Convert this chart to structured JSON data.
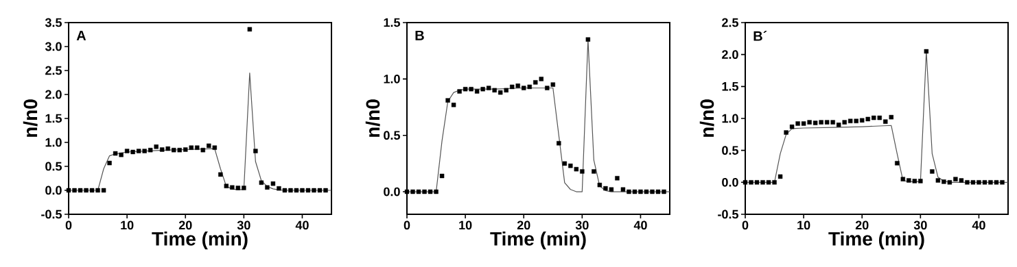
{
  "chart_data": [
    {
      "type": "scatter",
      "title": "A",
      "xlabel": "Time (min)",
      "ylabel": "n/n0",
      "xlim": [
        0,
        45
      ],
      "xticks": [
        0,
        10,
        20,
        30,
        40
      ],
      "ylim": [
        -0.5,
        3.5
      ],
      "yticks": [
        {
          "value": -0.5,
          "label": "-0.5"
        },
        {
          "value": 0,
          "label": "0.0"
        },
        {
          "value": 0.5,
          "label": "0.5"
        },
        {
          "value": 1,
          "label": "1.0"
        },
        {
          "value": 1.5,
          "label": "1.5"
        },
        {
          "value": 2,
          "label": "2.0"
        },
        {
          "value": 2.5,
          "label": "2.5"
        },
        {
          "value": 3,
          "label": "3.0"
        },
        {
          "value": 3.5,
          "label": "3.5"
        }
      ],
      "series": [
        {
          "marker": "square",
          "color": "#000000",
          "x": [
            0,
            1,
            2,
            3,
            4,
            5,
            6,
            7,
            8,
            9,
            10,
            11,
            12,
            13,
            14,
            15,
            16,
            17,
            18,
            19,
            20,
            21,
            22,
            23,
            24,
            25,
            26,
            27,
            28,
            29,
            30,
            31,
            32,
            33,
            34,
            35,
            36,
            37,
            38,
            39,
            40,
            41,
            42,
            43,
            44
          ],
          "values": [
            0,
            0,
            0,
            0,
            0,
            0,
            0,
            0.57,
            0.77,
            0.74,
            0.82,
            0.8,
            0.82,
            0.82,
            0.84,
            0.91,
            0.85,
            0.87,
            0.84,
            0.84,
            0.85,
            0.89,
            0.89,
            0.84,
            0.93,
            0.89,
            0.33,
            0.09,
            0.06,
            0.05,
            0.05,
            3.36,
            0.82,
            0.16,
            0.06,
            0.14,
            0.04,
            0,
            0,
            0,
            0,
            0,
            0,
            0,
            0
          ]
        },
        {
          "type": "line",
          "color": "#555555",
          "x": [
            0,
            5,
            6,
            7,
            8,
            10,
            15,
            20,
            25,
            26,
            27,
            28,
            29,
            30,
            31,
            32,
            33,
            34,
            35,
            36,
            37,
            45
          ],
          "values": [
            0,
            0,
            0.45,
            0.72,
            0.76,
            0.8,
            0.83,
            0.85,
            0.87,
            0.45,
            0.08,
            0.03,
            0.01,
            0.02,
            2.45,
            0.6,
            0.2,
            0.08,
            0.03,
            0.01,
            0,
            0
          ]
        }
      ]
    },
    {
      "type": "scatter",
      "title": "B",
      "xlabel": "Time (min)",
      "ylabel": "n/n0",
      "xlim": [
        0,
        45
      ],
      "xticks": [
        0,
        10,
        20,
        30,
        40
      ],
      "ylim": [
        -0.2,
        1.5
      ],
      "yticks": [
        {
          "value": 0,
          "label": "0.0"
        },
        {
          "value": 0.5,
          "label": "0.5"
        },
        {
          "value": 1,
          "label": "1.0"
        },
        {
          "value": 1.5,
          "label": "1.5"
        }
      ],
      "series": [
        {
          "marker": "square",
          "color": "#000000",
          "x": [
            0,
            1,
            2,
            3,
            4,
            5,
            6,
            7,
            8,
            9,
            10,
            11,
            12,
            13,
            14,
            15,
            16,
            17,
            18,
            19,
            20,
            21,
            22,
            23,
            24,
            25,
            26,
            27,
            28,
            29,
            30,
            31,
            32,
            33,
            34,
            35,
            36,
            37,
            38,
            39,
            40,
            41,
            42,
            43,
            44
          ],
          "values": [
            0,
            0,
            0,
            0,
            0,
            0,
            0.14,
            0.81,
            0.77,
            0.89,
            0.91,
            0.91,
            0.89,
            0.91,
            0.92,
            0.9,
            0.88,
            0.9,
            0.93,
            0.94,
            0.92,
            0.93,
            0.97,
            1.0,
            0.92,
            0.95,
            0.43,
            0.25,
            0.23,
            0.2,
            0.18,
            1.35,
            0.18,
            0.06,
            0.03,
            0.02,
            0.12,
            0.02,
            0,
            0,
            0,
            0,
            0,
            0,
            0
          ]
        },
        {
          "type": "line",
          "color": "#555555",
          "x": [
            0,
            5,
            6,
            7,
            8,
            9,
            10,
            15,
            20,
            25,
            26,
            27,
            28,
            29,
            30,
            31,
            32,
            33,
            34,
            35,
            45
          ],
          "values": [
            0,
            0,
            0.45,
            0.8,
            0.88,
            0.9,
            0.91,
            0.91,
            0.92,
            0.92,
            0.5,
            0.08,
            0.02,
            0,
            0,
            1.35,
            0.28,
            0.05,
            0.01,
            0,
            0
          ]
        }
      ]
    },
    {
      "type": "scatter",
      "title": "B´",
      "xlabel": "Time (min)",
      "ylabel": "n/n0",
      "xlim": [
        0,
        45
      ],
      "xticks": [
        0,
        10,
        20,
        30,
        40
      ],
      "ylim": [
        -0.5,
        2.5
      ],
      "yticks": [
        {
          "value": -0.5,
          "label": "-0.5"
        },
        {
          "value": 0,
          "label": "0.0"
        },
        {
          "value": 0.5,
          "label": "0.5"
        },
        {
          "value": 1,
          "label": "1.0"
        },
        {
          "value": 1.5,
          "label": "1.5"
        },
        {
          "value": 2,
          "label": "2.0"
        },
        {
          "value": 2.5,
          "label": "2.5"
        }
      ],
      "series": [
        {
          "marker": "square",
          "color": "#000000",
          "x": [
            0,
            1,
            2,
            3,
            4,
            5,
            6,
            7,
            8,
            9,
            10,
            11,
            12,
            13,
            14,
            15,
            16,
            17,
            18,
            19,
            20,
            21,
            22,
            23,
            24,
            25,
            26,
            27,
            28,
            29,
            30,
            31,
            32,
            33,
            34,
            35,
            36,
            37,
            38,
            39,
            40,
            41,
            42,
            43,
            44
          ],
          "values": [
            0,
            0,
            0,
            0,
            0,
            0,
            0.09,
            0.78,
            0.87,
            0.92,
            0.92,
            0.94,
            0.93,
            0.94,
            0.94,
            0.94,
            0.9,
            0.94,
            0.96,
            0.96,
            0.97,
            0.99,
            1.01,
            1.01,
            0.95,
            1.02,
            0.3,
            0.05,
            0.03,
            0.02,
            0.02,
            2.05,
            0.17,
            0.03,
            0.01,
            0,
            0.05,
            0.03,
            0,
            0,
            0,
            0,
            0,
            0,
            0
          ]
        },
        {
          "type": "line",
          "color": "#555555",
          "x": [
            0,
            5,
            6,
            7,
            8,
            10,
            15,
            20,
            25,
            26,
            27,
            28,
            30,
            31,
            32,
            33,
            34,
            35,
            45
          ],
          "values": [
            0,
            0,
            0.45,
            0.75,
            0.84,
            0.85,
            0.86,
            0.87,
            0.89,
            0.45,
            0.03,
            0.01,
            0.01,
            2.05,
            0.45,
            0.08,
            0.02,
            0,
            0
          ]
        }
      ]
    }
  ]
}
